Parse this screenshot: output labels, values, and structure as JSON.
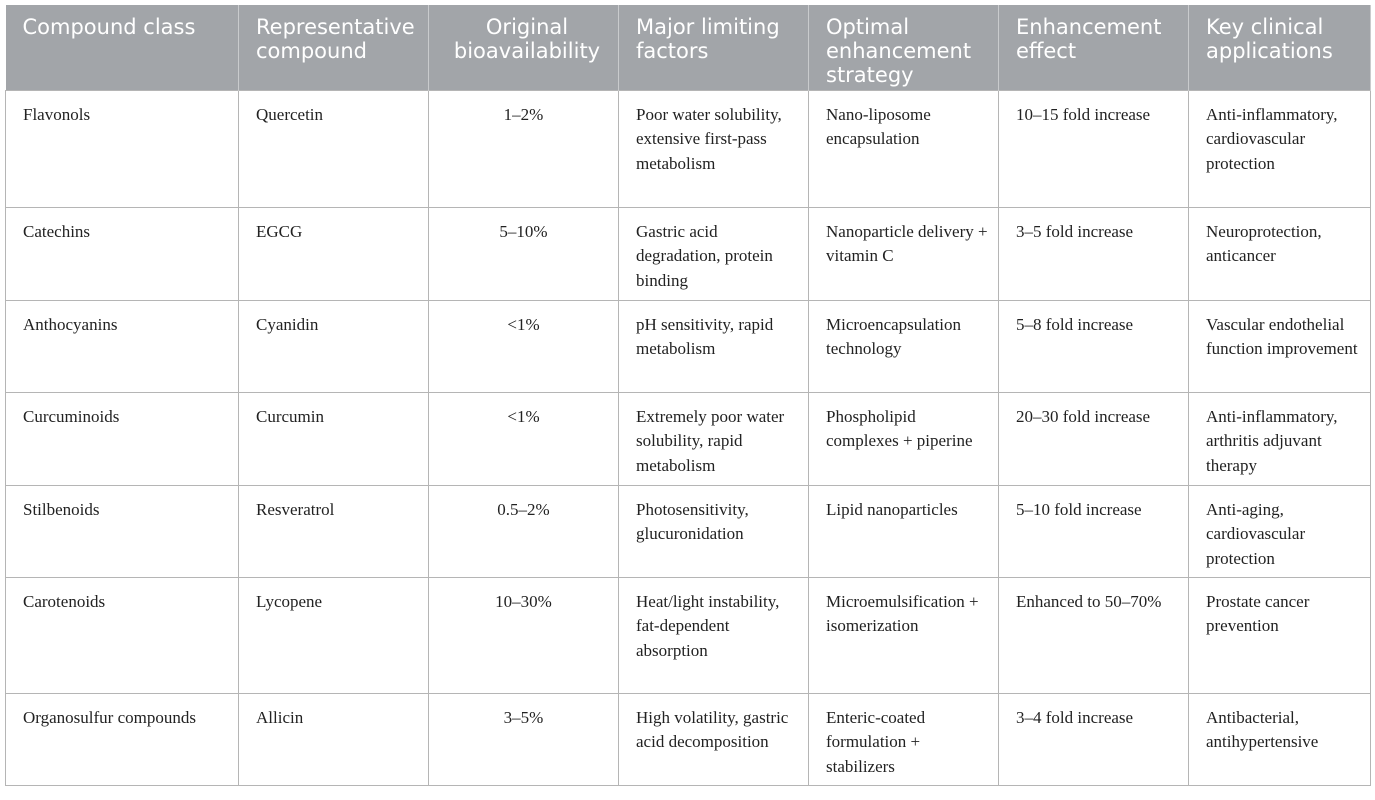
{
  "table": {
    "header": [
      "Compound class",
      "Representative compound",
      "Original bioavailability",
      "Major limiting factors",
      "Optimal enhancement strategy",
      "Enhancement effect",
      "Key clinical applications"
    ],
    "rows": [
      [
        "Flavonols",
        "Quercetin",
        "1–2%",
        "Poor water solubility, extensive first-pass metabolism",
        "Nano-liposome encapsulation",
        "10–15 fold increase",
        "Anti-inflammatory, cardiovascular protection"
      ],
      [
        "Catechins",
        "EGCG",
        "5–10%",
        "Gastric acid degradation, protein binding",
        "Nanoparticle delivery + vitamin C",
        "3–5 fold increase",
        "Neuroprotection, anticancer"
      ],
      [
        "Anthocyanins",
        "Cyanidin",
        "<1%",
        "pH sensitivity, rapid metabolism",
        "Microencapsulation technology",
        "5–8 fold increase",
        "Vascular endothelial function improvement"
      ],
      [
        "Curcuminoids",
        "Curcumin",
        "<1%",
        "Extremely poor water solubility, rapid metabolism",
        "Phospholipid complexes + piperine",
        "20–30 fold increase",
        "Anti-inflammatory, arthritis adjuvant therapy"
      ],
      [
        "Stilbenoids",
        "Resveratrol",
        "0.5–2%",
        "Photosensitivity, glucuronidation",
        "Lipid nanoparticles",
        "5–10 fold increase",
        "Anti-aging, cardiovascular protection"
      ],
      [
        "Carotenoids",
        "Lycopene",
        "10–30%",
        "Heat/light instability, fat-dependent absorption",
        "Microemulsification + isomerization",
        "Enhanced to 50–70%",
        "Prostate cancer prevention"
      ],
      [
        "Organosulfur compounds",
        "Allicin",
        "3–5%",
        "High volatility, gastric acid decomposition",
        "Enteric-coated formulation + stabilizers",
        "3–4 fold increase",
        "Antibacterial, antihypertensive"
      ]
    ]
  }
}
